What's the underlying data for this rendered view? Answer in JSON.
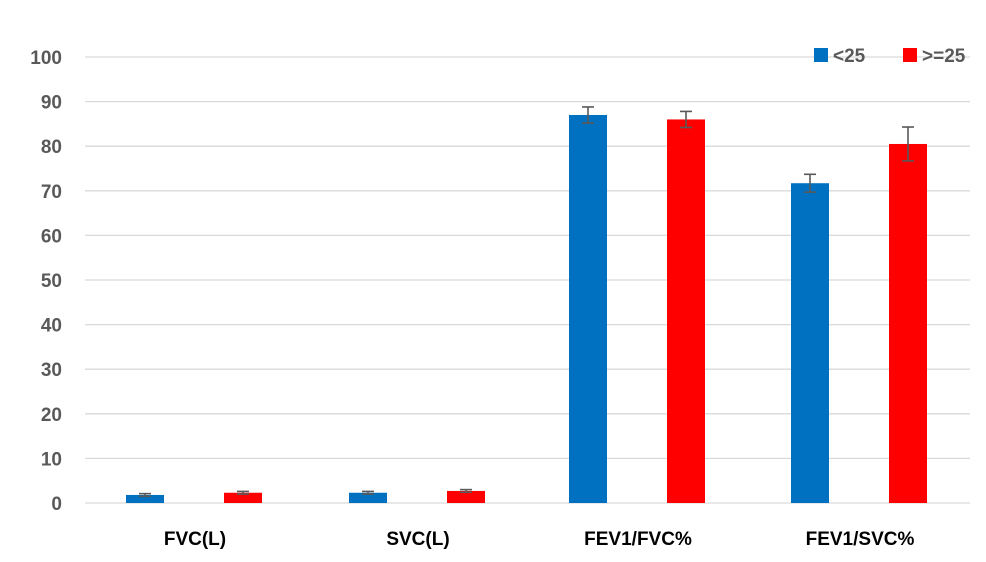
{
  "chart_data": {
    "type": "bar",
    "title": "",
    "xlabel": "",
    "ylabel": "",
    "ylim": [
      0,
      100
    ],
    "yticks": [
      0,
      10,
      20,
      30,
      40,
      50,
      60,
      70,
      80,
      90,
      100
    ],
    "grid": true,
    "legend_position": "top-right",
    "categories": [
      "FVC(L)",
      "SVC(L)",
      "FEV1/FVC%",
      "FEV1/SVC%"
    ],
    "series": [
      {
        "name": "<25",
        "color": "#0070c0",
        "values": [
          1.8,
          2.3,
          87.0,
          71.7
        ],
        "errors": [
          0.3,
          0.3,
          1.8,
          2.0
        ]
      },
      {
        "name": ">=25",
        "color": "#ff0000",
        "values": [
          2.3,
          2.7,
          86.0,
          80.5
        ],
        "errors": [
          0.3,
          0.3,
          1.8,
          3.8
        ]
      }
    ]
  }
}
